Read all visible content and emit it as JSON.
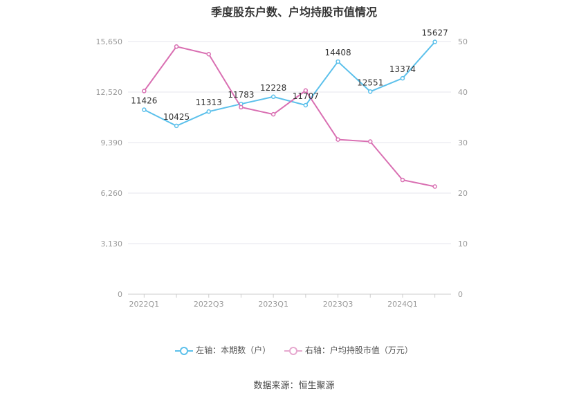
{
  "chart_data": {
    "type": "line",
    "title": "季度股东户数、户均持股市值情况",
    "categories": [
      "2022Q1",
      "2022Q2",
      "2022Q3",
      "2022Q4",
      "2023Q1",
      "2023Q2",
      "2023Q3",
      "2023Q4",
      "2024Q1",
      "2024Q2"
    ],
    "x_tick_labels": [
      "2022Q1",
      "",
      "2022Q3",
      "",
      "2023Q1",
      "",
      "2023Q3",
      "",
      "2024Q1",
      ""
    ],
    "left_axis": {
      "min": 0,
      "max": 15650,
      "ticks": [
        0,
        3130,
        6260,
        9390,
        12520,
        15650
      ],
      "tick_labels": [
        "0",
        "3,130",
        "6,260",
        "9,390",
        "12,520",
        "15,650"
      ]
    },
    "right_axis": {
      "min": 0,
      "max": 50,
      "ticks": [
        0,
        10,
        20,
        30,
        40,
        50
      ],
      "tick_labels": [
        "0",
        "10",
        "20",
        "30",
        "40",
        "50"
      ]
    },
    "series": [
      {
        "name": "左轴：本期数（户）",
        "axis": "left",
        "color": "#5bc0eb",
        "values": [
          11426,
          10425,
          11313,
          11783,
          12228,
          11707,
          14408,
          12551,
          13374,
          15627
        ],
        "labels": [
          "11426",
          "10425",
          "11313",
          "11783",
          "12228",
          "11707",
          "14408",
          "12551",
          "13374",
          "15627"
        ]
      },
      {
        "name": "右轴：户均持股市值（万元）",
        "axis": "right",
        "color": "#d96fb2",
        "values": [
          40.2,
          49.0,
          47.5,
          37.0,
          35.6,
          40.3,
          30.6,
          30.2,
          22.6,
          21.3
        ]
      }
    ],
    "legend_position": "bottom",
    "grid": true
  },
  "source": "数据来源：恒生聚源"
}
